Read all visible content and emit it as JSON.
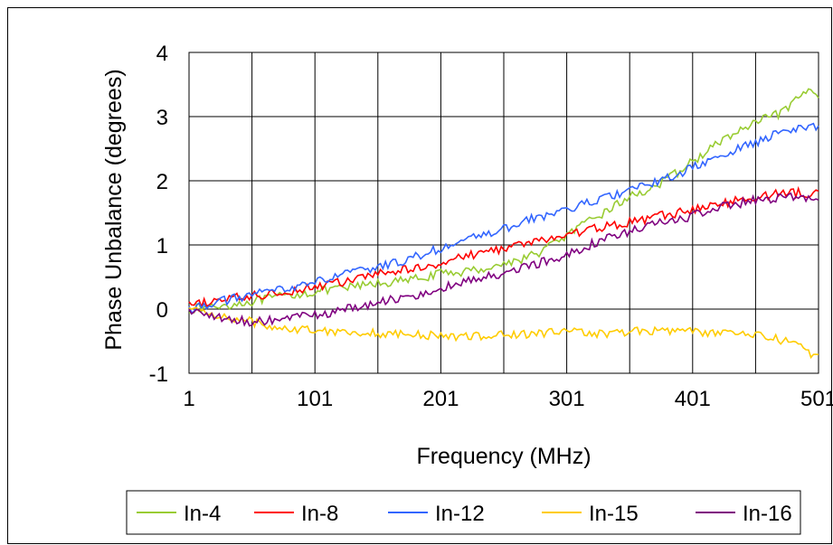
{
  "chart_data": {
    "type": "line",
    "title": "",
    "xlabel": "Frequency (MHz)",
    "ylabel": "Phase Unbalance (degrees)",
    "xlim": [
      1,
      501
    ],
    "ylim": [
      -1,
      4
    ],
    "x_ticks": [
      "1",
      "101",
      "201",
      "301",
      "401",
      "501"
    ],
    "y_ticks": [
      "-1",
      "0",
      "1",
      "2",
      "3",
      "4"
    ],
    "grid": true,
    "legend_position": "bottom",
    "series": [
      {
        "name": "In-4",
        "color": "#99cc33",
        "x": [
          1,
          26,
          51,
          76,
          101,
          126,
          151,
          176,
          201,
          226,
          251,
          276,
          301,
          326,
          351,
          376,
          401,
          426,
          451,
          476,
          491,
          501
        ],
        "y": [
          0.0,
          0.05,
          0.12,
          0.2,
          0.27,
          0.33,
          0.4,
          0.45,
          0.55,
          0.6,
          0.7,
          0.85,
          1.15,
          1.45,
          1.75,
          1.95,
          2.3,
          2.65,
          2.9,
          3.1,
          3.4,
          3.35
        ]
      },
      {
        "name": "In-8",
        "color": "#ff0000",
        "x": [
          1,
          26,
          51,
          76,
          101,
          126,
          151,
          176,
          201,
          226,
          251,
          276,
          301,
          326,
          351,
          376,
          401,
          426,
          451,
          476,
          501
        ],
        "y": [
          0.05,
          0.15,
          0.2,
          0.27,
          0.35,
          0.43,
          0.55,
          0.62,
          0.72,
          0.85,
          0.95,
          1.05,
          1.15,
          1.27,
          1.35,
          1.45,
          1.55,
          1.65,
          1.75,
          1.82,
          1.8
        ]
      },
      {
        "name": "In-12",
        "color": "#3366ff",
        "x": [
          1,
          26,
          51,
          76,
          101,
          126,
          151,
          176,
          201,
          226,
          251,
          276,
          301,
          326,
          351,
          376,
          401,
          426,
          451,
          476,
          501
        ],
        "y": [
          0.0,
          0.12,
          0.22,
          0.32,
          0.42,
          0.55,
          0.65,
          0.78,
          0.95,
          1.1,
          1.25,
          1.42,
          1.55,
          1.7,
          1.85,
          2.0,
          2.2,
          2.4,
          2.6,
          2.8,
          2.85
        ]
      },
      {
        "name": "In-15",
        "color": "#ffcc00",
        "x": [
          1,
          26,
          51,
          76,
          101,
          126,
          151,
          176,
          201,
          226,
          251,
          276,
          301,
          326,
          351,
          376,
          401,
          426,
          451,
          476,
          501
        ],
        "y": [
          0.0,
          -0.1,
          -0.2,
          -0.3,
          -0.32,
          -0.35,
          -0.38,
          -0.4,
          -0.42,
          -0.42,
          -0.4,
          -0.38,
          -0.35,
          -0.38,
          -0.35,
          -0.33,
          -0.35,
          -0.38,
          -0.4,
          -0.5,
          -0.75
        ]
      },
      {
        "name": "In-16",
        "color": "#800080",
        "x": [
          1,
          26,
          51,
          76,
          101,
          126,
          151,
          176,
          201,
          226,
          251,
          276,
          301,
          326,
          351,
          376,
          401,
          426,
          451,
          476,
          501
        ],
        "y": [
          0.0,
          -0.15,
          -0.2,
          -0.15,
          -0.1,
          0.0,
          0.1,
          0.2,
          0.32,
          0.45,
          0.55,
          0.7,
          0.85,
          1.05,
          1.2,
          1.35,
          1.45,
          1.6,
          1.7,
          1.75,
          1.75
        ]
      }
    ]
  }
}
